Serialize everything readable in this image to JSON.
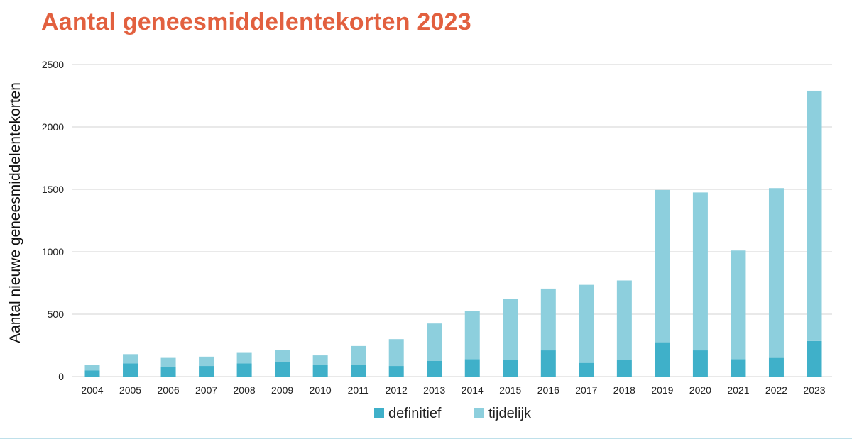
{
  "colors": {
    "title": "#e2603f",
    "definitief": "#3fb0c9",
    "tijdelijk": "#8dcfdd",
    "grid": "#d3d3d3"
  },
  "chart_data": {
    "type": "bar",
    "stacked": true,
    "title": "Aantal geneesmiddelentekorten 2023",
    "xlabel": "",
    "ylabel": "Aantal nieuwe geneesmiddelentekorten",
    "ylim": [
      0,
      2500
    ],
    "yticks": [
      "2500",
      "2000",
      "1500",
      "1000",
      "500",
      "0"
    ],
    "grid": true,
    "legend_position": "bottom-center",
    "categories": [
      "2004",
      "2005",
      "2006",
      "2007",
      "2008",
      "2009",
      "2010",
      "2011",
      "2012",
      "2013",
      "2014",
      "2015",
      "2016",
      "2017",
      "2018",
      "2019",
      "2020",
      "2021",
      "2022",
      "2023"
    ],
    "series": [
      {
        "name": "definitief",
        "values": [
          50,
          105,
          75,
          85,
          105,
          115,
          95,
          95,
          85,
          125,
          140,
          135,
          210,
          110,
          135,
          275,
          210,
          140,
          150,
          285
        ]
      },
      {
        "name": "tijdelijk",
        "values": [
          45,
          75,
          75,
          75,
          85,
          100,
          75,
          150,
          215,
          300,
          385,
          485,
          495,
          625,
          635,
          1220,
          1265,
          870,
          1360,
          2005
        ]
      }
    ]
  }
}
